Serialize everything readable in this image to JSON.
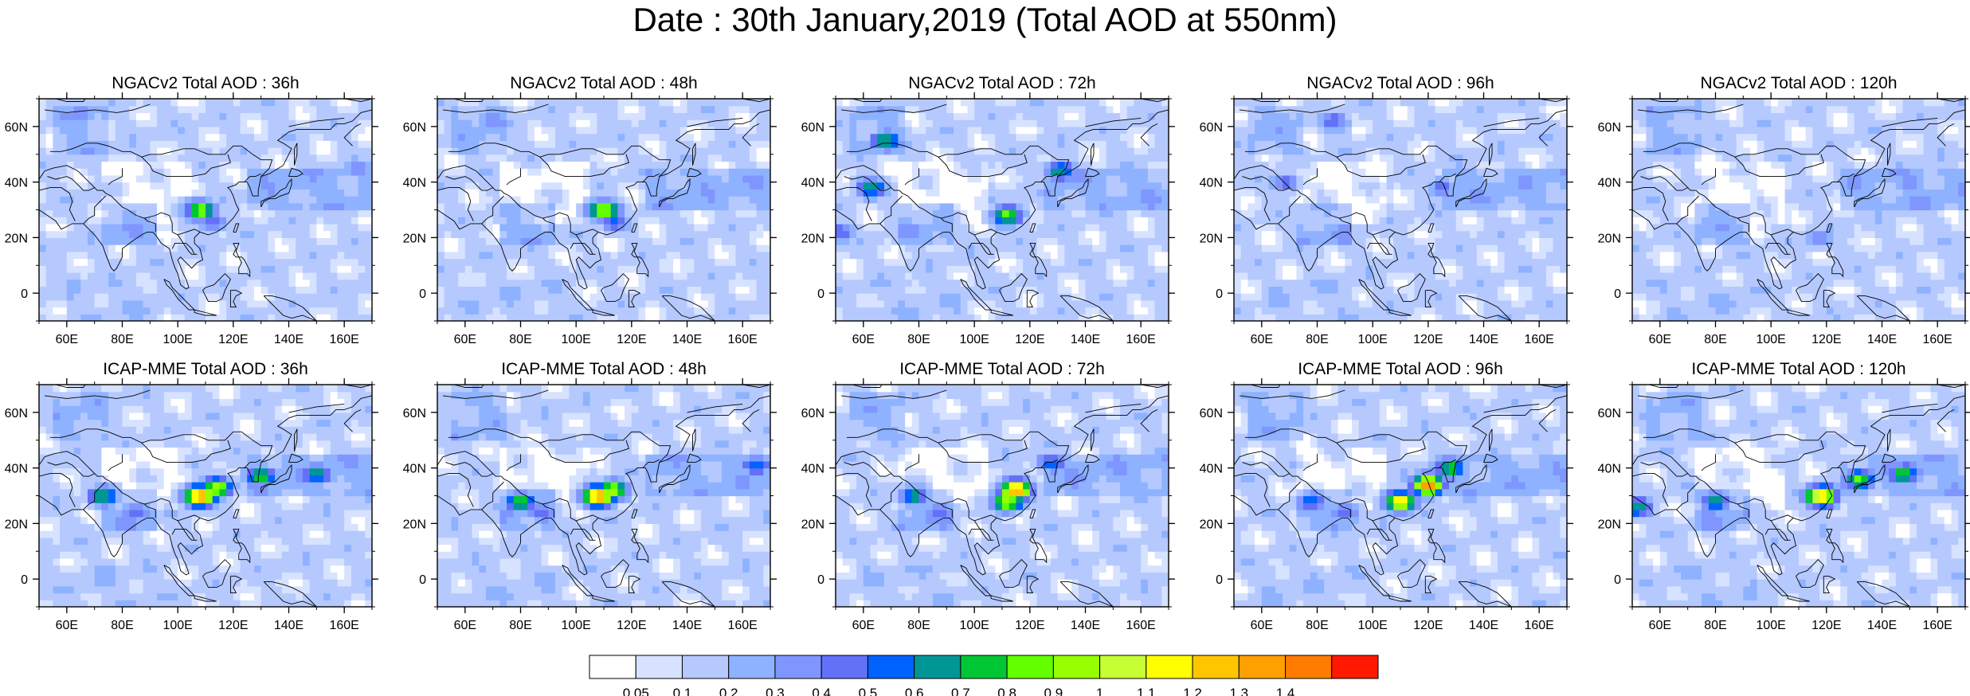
{
  "figure": {
    "title": "Date : 30th January,2019 (Total AOD at 550nm)"
  },
  "chart_data": {
    "type": "heatmap",
    "title": "Date : 30th January,2019 (Total AOD at 550nm)",
    "variable": "Total AOD at 550nm",
    "lon_range": [
      50,
      170
    ],
    "lat_range": [
      -10,
      70
    ],
    "x_ticks": [
      "60E",
      "80E",
      "100E",
      "120E",
      "140E",
      "160E"
    ],
    "x_tick_values": [
      60,
      80,
      100,
      120,
      140,
      160
    ],
    "y_ticks": [
      "0",
      "20N",
      "40N",
      "60N"
    ],
    "y_tick_values": [
      0,
      20,
      40,
      60
    ],
    "colorbar": {
      "position": "bottom",
      "labels": [
        "0.05",
        "0.1",
        "0.2",
        "0.3",
        "0.4",
        "0.5",
        "0.6",
        "0.7",
        "0.8",
        "0.9",
        "1",
        "1.1",
        "1.2",
        "1.3",
        "1.4"
      ],
      "colors": [
        "#ffffff",
        "#d6e2ff",
        "#b5c9ff",
        "#8eb2ff",
        "#7f96ff",
        "#6370f8",
        "#0063ff",
        "#009696",
        "#00c633",
        "#63ff00",
        "#96ff00",
        "#c6ff33",
        "#ffff00",
        "#ffc600",
        "#ffa000",
        "#ff7c00",
        "#ff1900"
      ]
    },
    "panels": [
      {
        "title": "NGACv2 Total AOD : 36h",
        "model": "NGACv2",
        "lead": "36h",
        "hotspots": [
          {
            "lon": 108,
            "lat": 30,
            "aod": 0.9
          },
          {
            "lon": 112,
            "lat": 26,
            "aod": 0.5
          },
          {
            "lon": 65,
            "lat": 65,
            "aod": 0.45
          },
          {
            "lon": 165,
            "lat": 45,
            "aod": 0.45
          }
        ]
      },
      {
        "title": "NGACv2 Total AOD : 48h",
        "model": "NGACv2",
        "lead": "48h",
        "hotspots": [
          {
            "lon": 110,
            "lat": 30,
            "aod": 1.0
          },
          {
            "lon": 114,
            "lat": 26,
            "aod": 0.55
          },
          {
            "lon": 70,
            "lat": 62,
            "aod": 0.4
          }
        ]
      },
      {
        "title": "NGACv2 Total AOD : 72h",
        "model": "NGACv2",
        "lead": "72h",
        "hotspots": [
          {
            "lon": 112,
            "lat": 28,
            "aod": 0.85
          },
          {
            "lon": 68,
            "lat": 55,
            "aod": 0.75
          },
          {
            "lon": 63,
            "lat": 38,
            "aod": 0.7
          },
          {
            "lon": 131,
            "lat": 44,
            "aod": 0.7
          },
          {
            "lon": 52,
            "lat": 22,
            "aod": 0.5
          }
        ]
      },
      {
        "title": "NGACv2 Total AOD : 96h",
        "model": "NGACv2",
        "lead": "96h",
        "hotspots": [
          {
            "lon": 86,
            "lat": 62,
            "aod": 0.5
          },
          {
            "lon": 125,
            "lat": 38,
            "aod": 0.45
          },
          {
            "lon": 68,
            "lat": 40,
            "aod": 0.45
          }
        ]
      },
      {
        "title": "NGACv2 Total AOD : 120h",
        "model": "NGACv2",
        "lead": "120h",
        "hotspots": [
          {
            "lon": 118,
            "lat": 20,
            "aod": 0.4
          },
          {
            "lon": 150,
            "lat": 40,
            "aod": 0.35
          }
        ]
      },
      {
        "title": "ICAP-MME Total AOD : 36h",
        "model": "ICAP-MME",
        "lead": "36h",
        "hotspots": [
          {
            "lon": 108,
            "lat": 30,
            "aod": 1.4
          },
          {
            "lon": 114,
            "lat": 33,
            "aod": 1.0
          },
          {
            "lon": 130,
            "lat": 37,
            "aod": 0.8
          },
          {
            "lon": 150,
            "lat": 38,
            "aod": 0.75
          },
          {
            "lon": 73,
            "lat": 30,
            "aod": 0.75
          },
          {
            "lon": 85,
            "lat": 24,
            "aod": 0.5
          }
        ]
      },
      {
        "title": "ICAP-MME Total AOD : 48h",
        "model": "ICAP-MME",
        "lead": "48h",
        "hotspots": [
          {
            "lon": 108,
            "lat": 30,
            "aod": 1.4
          },
          {
            "lon": 113,
            "lat": 32,
            "aod": 1.0
          },
          {
            "lon": 80,
            "lat": 28,
            "aod": 0.8
          },
          {
            "lon": 165,
            "lat": 41,
            "aod": 0.6
          },
          {
            "lon": 88,
            "lat": 24,
            "aod": 0.5
          }
        ]
      },
      {
        "title": "ICAP-MME Total AOD : 72h",
        "model": "ICAP-MME",
        "lead": "72h",
        "hotspots": [
          {
            "lon": 115,
            "lat": 32,
            "aod": 1.4
          },
          {
            "lon": 112,
            "lat": 28,
            "aod": 1.0
          },
          {
            "lon": 78,
            "lat": 30,
            "aod": 0.7
          },
          {
            "lon": 128,
            "lat": 42,
            "aod": 0.6
          },
          {
            "lon": 88,
            "lat": 24,
            "aod": 0.5
          }
        ]
      },
      {
        "title": "ICAP-MME Total AOD : 96h",
        "model": "ICAP-MME",
        "lead": "96h",
        "hotspots": [
          {
            "lon": 120,
            "lat": 34,
            "aod": 1.4
          },
          {
            "lon": 110,
            "lat": 28,
            "aod": 1.2
          },
          {
            "lon": 128,
            "lat": 40,
            "aod": 0.8
          },
          {
            "lon": 78,
            "lat": 28,
            "aod": 0.6
          },
          {
            "lon": 90,
            "lat": 24,
            "aod": 0.5
          }
        ]
      },
      {
        "title": "ICAP-MME Total AOD : 120h",
        "model": "ICAP-MME",
        "lead": "120h",
        "hotspots": [
          {
            "lon": 118,
            "lat": 30,
            "aod": 1.3
          },
          {
            "lon": 132,
            "lat": 36,
            "aod": 0.85
          },
          {
            "lon": 148,
            "lat": 38,
            "aod": 0.8
          },
          {
            "lon": 52,
            "lat": 26,
            "aod": 0.7
          },
          {
            "lon": 80,
            "lat": 28,
            "aod": 0.7
          }
        ]
      }
    ]
  }
}
